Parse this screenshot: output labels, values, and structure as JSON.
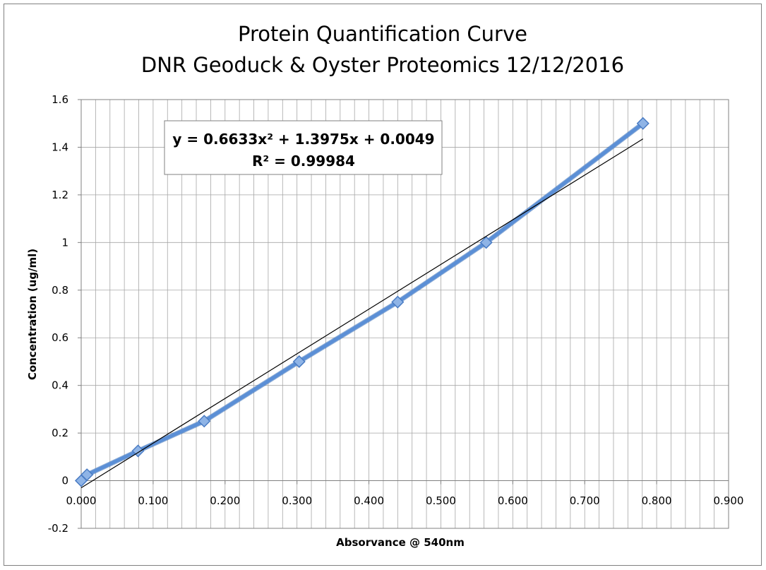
{
  "chart_data": {
    "type": "scatter",
    "title": "Protein Quantification Curve",
    "subtitle": "DNR Geoduck & Oyster Proteomics 12/12/2016",
    "xlabel": "Absorvance @ 540nm",
    "ylabel": "Concentration (ug/ml)",
    "xlim": [
      0,
      0.9
    ],
    "ylim": [
      -0.2,
      1.6
    ],
    "x_ticks": [
      "0.000",
      "0.100",
      "0.200",
      "0.300",
      "0.400",
      "0.500",
      "0.600",
      "0.700",
      "0.800",
      "0.900"
    ],
    "y_ticks": [
      "-0.2",
      "0",
      "0.2",
      "0.4",
      "0.6",
      "0.8",
      "1",
      "1.2",
      "1.4",
      "1.6"
    ],
    "grid": true,
    "series": [
      {
        "x": [
          0.0,
          0.008,
          0.079,
          0.171,
          0.303,
          0.44,
          0.563,
          0.781
        ],
        "y": [
          0.0,
          0.025,
          0.125,
          0.25,
          0.5,
          0.75,
          1.0,
          1.5
        ],
        "color": "#5b8fd6",
        "marker": "diamond"
      }
    ],
    "trendlines": [
      {
        "kind": "linear",
        "x": [
          0.0,
          0.781
        ],
        "y": [
          -0.03,
          1.435
        ],
        "color": "#000000"
      }
    ],
    "equation": {
      "line1": "y = 0.6633x² + 1.3975x + 0.0049",
      "line2": "R² = 0.99984"
    }
  }
}
